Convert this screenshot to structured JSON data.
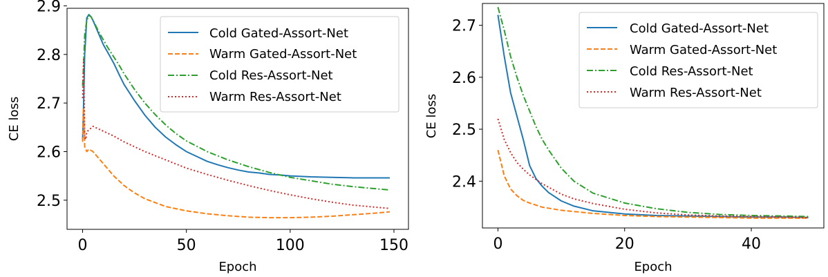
{
  "chart_data": [
    {
      "type": "line",
      "xlabel": "Epoch",
      "ylabel": "CE loss",
      "xlim": [
        -7.5,
        157
      ],
      "ylim": [
        2.44,
        2.895
      ],
      "xticks": [
        0,
        50,
        100,
        150
      ],
      "yticks": [
        2.5,
        2.6,
        2.7,
        2.8,
        2.9
      ],
      "xtick_labels": [
        "0",
        "50",
        "100",
        "150"
      ],
      "ytick_labels": [
        "2.5",
        "2.6",
        "2.7",
        "2.8",
        "2.9"
      ],
      "grid": false,
      "legend_position": "top-right",
      "series": [
        {
          "name": "Cold Gated-Assort-Net",
          "color": "#1f77b4",
          "dash": "solid",
          "x": [
            0,
            0.5,
            1,
            2,
            3,
            4,
            5,
            6,
            8,
            10,
            12,
            15,
            18,
            20,
            25,
            30,
            35,
            40,
            45,
            50,
            55,
            60,
            65,
            70,
            75,
            80,
            85,
            90,
            95,
            100,
            110,
            120,
            130,
            140,
            148
          ],
          "y": [
            2.625,
            2.7,
            2.8,
            2.875,
            2.882,
            2.878,
            2.87,
            2.86,
            2.84,
            2.82,
            2.805,
            2.782,
            2.755,
            2.738,
            2.705,
            2.675,
            2.65,
            2.63,
            2.614,
            2.6,
            2.59,
            2.58,
            2.573,
            2.567,
            2.562,
            2.558,
            2.556,
            2.553,
            2.552,
            2.55,
            2.548,
            2.547,
            2.546,
            2.546,
            2.546
          ]
        },
        {
          "name": "Warm Gated-Assort-Net",
          "color": "#ff7f0e",
          "dash": "dashed",
          "x": [
            0,
            0.5,
            1,
            2,
            3,
            5,
            7,
            10,
            15,
            20,
            25,
            30,
            40,
            50,
            60,
            70,
            80,
            90,
            100,
            110,
            120,
            130,
            140,
            148
          ],
          "y": [
            2.62,
            2.69,
            2.61,
            2.6,
            2.605,
            2.6,
            2.59,
            2.575,
            2.55,
            2.53,
            2.515,
            2.503,
            2.487,
            2.478,
            2.472,
            2.468,
            2.465,
            2.464,
            2.464,
            2.465,
            2.467,
            2.47,
            2.473,
            2.476
          ]
        },
        {
          "name": "Cold Res-Assort-Net",
          "color": "#2ca02c",
          "dash": "dashdot",
          "x": [
            0,
            0.5,
            1,
            2,
            3,
            4,
            5,
            6,
            8,
            10,
            12,
            15,
            18,
            20,
            25,
            30,
            35,
            40,
            45,
            50,
            60,
            70,
            80,
            90,
            100,
            110,
            120,
            130,
            140,
            148
          ],
          "y": [
            2.735,
            2.78,
            2.84,
            2.87,
            2.88,
            2.878,
            2.87,
            2.862,
            2.845,
            2.83,
            2.815,
            2.795,
            2.775,
            2.76,
            2.728,
            2.7,
            2.676,
            2.655,
            2.637,
            2.622,
            2.6,
            2.583,
            2.569,
            2.557,
            2.547,
            2.54,
            2.533,
            2.528,
            2.524,
            2.521
          ]
        },
        {
          "name": "Warm Res-Assort-Net",
          "color": "#d62728",
          "dash": "dotted",
          "x": [
            0,
            0.5,
            1,
            1.5,
            2,
            3,
            4,
            5,
            7,
            10,
            15,
            20,
            25,
            30,
            40,
            50,
            60,
            70,
            80,
            90,
            100,
            110,
            120,
            130,
            140,
            148
          ],
          "y": [
            2.71,
            2.79,
            2.63,
            2.625,
            2.64,
            2.645,
            2.648,
            2.652,
            2.648,
            2.642,
            2.632,
            2.62,
            2.61,
            2.6,
            2.583,
            2.566,
            2.553,
            2.541,
            2.53,
            2.52,
            2.511,
            2.503,
            2.496,
            2.49,
            2.486,
            2.483
          ]
        }
      ]
    },
    {
      "type": "line",
      "xlabel": "Epoch",
      "ylabel": "CE loss",
      "xlim": [
        -2.45,
        51.45
      ],
      "ylim": [
        2.31,
        2.742
      ],
      "xticks": [
        0,
        20,
        40
      ],
      "yticks": [
        2.4,
        2.5,
        2.6,
        2.7
      ],
      "xtick_labels": [
        "0",
        "20",
        "40"
      ],
      "ytick_labels": [
        "2.4",
        "2.5",
        "2.6",
        "2.7"
      ],
      "grid": false,
      "legend_position": "top-right",
      "series": [
        {
          "name": "Cold Gated-Assort-Net",
          "color": "#1f77b4",
          "dash": "solid",
          "x": [
            0,
            1,
            2,
            3,
            4,
            5,
            6,
            7,
            8,
            10,
            12,
            15,
            20,
            25,
            30,
            35,
            40,
            45,
            49
          ],
          "y": [
            2.72,
            2.64,
            2.57,
            2.525,
            2.48,
            2.43,
            2.405,
            2.39,
            2.378,
            2.362,
            2.352,
            2.343,
            2.337,
            2.334,
            2.333,
            2.332,
            2.331,
            2.331,
            2.33
          ]
        },
        {
          "name": "Warm Gated-Assort-Net",
          "color": "#ff7f0e",
          "dash": "dashed",
          "x": [
            0,
            1,
            2,
            3,
            4,
            5,
            7,
            10,
            15,
            20,
            25,
            30,
            35,
            40,
            45,
            49
          ],
          "y": [
            2.46,
            2.41,
            2.385,
            2.372,
            2.363,
            2.358,
            2.35,
            2.344,
            2.338,
            2.334,
            2.332,
            2.331,
            2.33,
            2.329,
            2.329,
            2.329
          ]
        },
        {
          "name": "Cold Res-Assort-Net",
          "color": "#2ca02c",
          "dash": "dashdot",
          "x": [
            0,
            1,
            2,
            3,
            4,
            5,
            6,
            7,
            8,
            10,
            12,
            15,
            20,
            25,
            30,
            35,
            40,
            45,
            49
          ],
          "y": [
            2.735,
            2.69,
            2.64,
            2.6,
            2.565,
            2.535,
            2.505,
            2.48,
            2.46,
            2.425,
            2.4,
            2.377,
            2.358,
            2.347,
            2.34,
            2.336,
            2.334,
            2.333,
            2.332
          ]
        },
        {
          "name": "Warm Res-Assort-Net",
          "color": "#d62728",
          "dash": "dotted",
          "x": [
            0,
            1,
            2,
            3,
            4,
            5,
            7,
            10,
            12,
            15,
            20,
            25,
            30,
            35,
            40,
            45,
            49
          ],
          "y": [
            2.52,
            2.48,
            2.455,
            2.436,
            2.423,
            2.412,
            2.395,
            2.375,
            2.366,
            2.357,
            2.346,
            2.339,
            2.335,
            2.333,
            2.332,
            2.331,
            2.33
          ]
        }
      ]
    }
  ]
}
